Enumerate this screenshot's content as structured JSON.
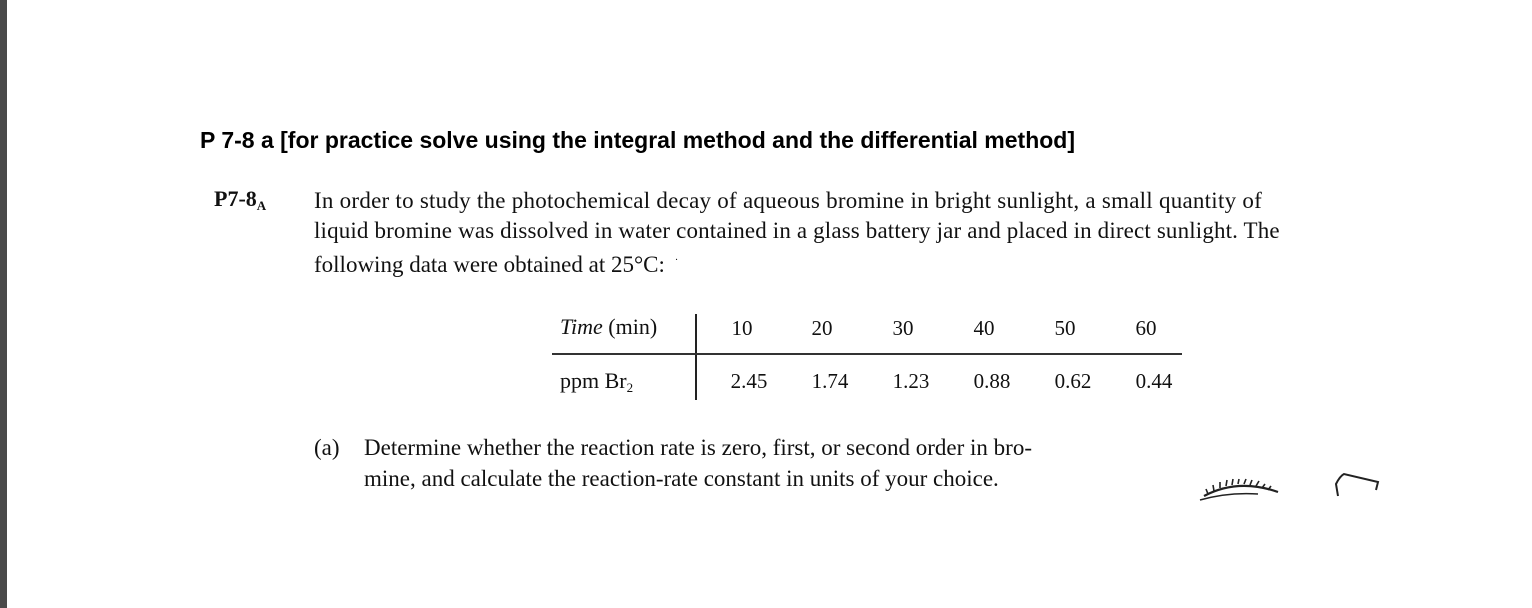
{
  "heading": "P 7-8 a [for practice solve using the integral method and the differential method]",
  "problem": {
    "number": "P7-8",
    "number_subscript": "A",
    "intro_lines": [
      "In order to study the photochemical decay of aqueous bromine in bright sunlight, a small quantity of",
      "liquid bromine was dissolved in water contained in a glass battery jar and placed in direct sunlight. The",
      "following data were obtained at 25°C:"
    ]
  },
  "table": {
    "row1": {
      "label_italic": "Time",
      "label_rest": " (min)",
      "values": [
        "10",
        "20",
        "30",
        "40",
        "50",
        "60"
      ]
    },
    "row2": {
      "label": "ppm Br",
      "label_subscript": "2",
      "values": [
        "2.45",
        "1.74",
        "1.23",
        "0.88",
        "0.62",
        "0.44"
      ]
    }
  },
  "part_a": {
    "label": "(a)",
    "lines": [
      "Determine whether the reaction rate is zero, first, or second order in bro-",
      "mine, and calculate the reaction-rate constant in units of your choice."
    ]
  }
}
